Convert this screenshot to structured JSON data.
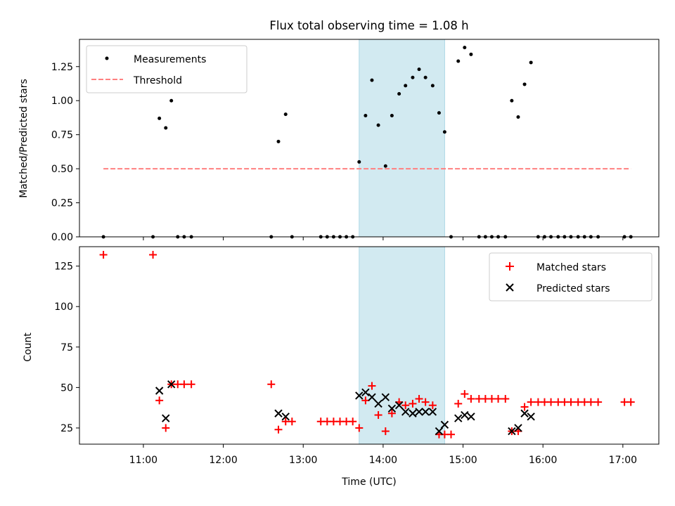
{
  "figure": {
    "title": "Flux total observing time = 1.08 h"
  },
  "chart_data": [
    {
      "type": "scatter",
      "panel": "top",
      "ylabel": "Matched/Predicted stars",
      "xlabel": "",
      "x_unit": "hours UTC",
      "xlim": [
        10.2,
        17.45
      ],
      "ylim": [
        0,
        1.45
      ],
      "yticks": [
        0,
        0.25,
        0.5,
        0.75,
        1.0,
        1.25
      ],
      "ytick_labels": [
        "0.00",
        "0.25",
        "0.50",
        "0.75",
        "1.00",
        "1.25"
      ],
      "grid": false,
      "legend_position": "top-left",
      "shaded_span": {
        "x0": 13.7,
        "x1": 14.77,
        "color": "#add8e6"
      },
      "series": [
        {
          "name": "Measurements",
          "marker": "dot",
          "color": "#000000",
          "x": [
            10.5,
            11.12,
            11.2,
            11.28,
            11.35,
            11.43,
            11.51,
            11.6,
            12.6,
            12.69,
            12.78,
            12.86,
            13.22,
            13.3,
            13.38,
            13.46,
            13.54,
            13.62,
            13.7,
            13.78,
            13.86,
            13.94,
            14.03,
            14.11,
            14.2,
            14.28,
            14.37,
            14.45,
            14.53,
            14.62,
            14.7,
            14.77,
            14.85,
            14.94,
            15.02,
            15.1,
            15.2,
            15.28,
            15.36,
            15.44,
            15.53,
            15.61,
            15.69,
            15.77,
            15.85,
            15.94,
            16.02,
            16.1,
            16.19,
            16.27,
            16.35,
            16.44,
            16.52,
            16.6,
            16.69,
            17.02,
            17.1
          ],
          "y": [
            0,
            0,
            0.87,
            0.8,
            1.0,
            0,
            0,
            0,
            0,
            0.7,
            0.9,
            0,
            0,
            0,
            0,
            0,
            0,
            0,
            0.55,
            0.89,
            1.15,
            0.82,
            0.52,
            0.89,
            1.05,
            1.11,
            1.17,
            1.23,
            1.17,
            1.11,
            0.91,
            0.77,
            0,
            1.29,
            1.39,
            1.34,
            0,
            0,
            0,
            0,
            0,
            1.0,
            0.88,
            1.12,
            1.28,
            0,
            0,
            0,
            0,
            0,
            0,
            0,
            0,
            0,
            0,
            0,
            0
          ]
        },
        {
          "name": "Threshold",
          "style": "dashed-line",
          "color": "#ff8080",
          "x": [
            10.5,
            17.1
          ],
          "y": [
            0.5,
            0.5
          ]
        }
      ]
    },
    {
      "type": "scatter",
      "panel": "bottom",
      "ylabel": "Count",
      "xlabel": "Time (UTC)",
      "x_unit": "hours UTC",
      "xlim": [
        10.2,
        17.45
      ],
      "ylim": [
        15,
        137
      ],
      "xticks": [
        11,
        12,
        13,
        14,
        15,
        16,
        17
      ],
      "xtick_labels": [
        "11:00",
        "12:00",
        "13:00",
        "14:00",
        "15:00",
        "16:00",
        "17:00"
      ],
      "yticks": [
        25,
        50,
        75,
        100,
        125
      ],
      "ytick_labels": [
        "25",
        "50",
        "75",
        "100",
        "125"
      ],
      "grid": false,
      "legend_position": "top-right",
      "shaded_span": {
        "x0": 13.7,
        "x1": 14.77,
        "color": "#add8e6"
      },
      "series": [
        {
          "name": "Matched stars",
          "marker": "plus",
          "color": "#ff0000",
          "x": [
            10.5,
            11.12,
            11.2,
            11.28,
            11.35,
            11.43,
            11.51,
            11.6,
            12.6,
            12.69,
            12.78,
            12.86,
            13.22,
            13.3,
            13.38,
            13.46,
            13.54,
            13.62,
            13.7,
            13.78,
            13.86,
            13.94,
            14.03,
            14.11,
            14.2,
            14.28,
            14.37,
            14.45,
            14.53,
            14.62,
            14.7,
            14.77,
            14.85,
            14.94,
            15.02,
            15.1,
            15.2,
            15.28,
            15.36,
            15.44,
            15.53,
            15.61,
            15.69,
            15.77,
            15.85,
            15.94,
            16.02,
            16.1,
            16.19,
            16.27,
            16.35,
            16.44,
            16.52,
            16.6,
            16.69,
            17.02,
            17.1
          ],
          "y": [
            132,
            132,
            42,
            25,
            52,
            52,
            52,
            52,
            52,
            24,
            29,
            29,
            29,
            29,
            29,
            29,
            29,
            29,
            25,
            42,
            51,
            33,
            23,
            34,
            41,
            39,
            40,
            43,
            41,
            39,
            21,
            21,
            21,
            40,
            46,
            43,
            43,
            43,
            43,
            43,
            43,
            23,
            23,
            38,
            41,
            41,
            41,
            41,
            41,
            41,
            41,
            41,
            41,
            41,
            41,
            41,
            41
          ]
        },
        {
          "name": "Predicted stars",
          "marker": "x",
          "color": "#000000",
          "x": [
            11.2,
            11.28,
            11.35,
            12.69,
            12.78,
            13.7,
            13.78,
            13.86,
            13.94,
            14.03,
            14.11,
            14.2,
            14.28,
            14.37,
            14.45,
            14.53,
            14.62,
            14.7,
            14.77,
            14.94,
            15.02,
            15.1,
            15.61,
            15.69,
            15.77,
            15.85
          ],
          "y": [
            48,
            31,
            52,
            34,
            32,
            45,
            47,
            44,
            40,
            44,
            37,
            39,
            35,
            34,
            35,
            35,
            35,
            23,
            27,
            31,
            33,
            32,
            23,
            25,
            34,
            32
          ]
        }
      ]
    }
  ]
}
